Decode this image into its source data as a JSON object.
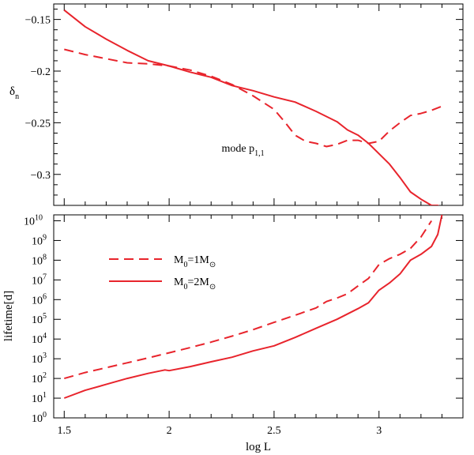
{
  "colors": {
    "series": "#e8242c",
    "axis": "#000000"
  },
  "chart_data": [
    {
      "type": "line",
      "panel": "top",
      "xlabel": "",
      "ylabel": "δ",
      "ylabel_sub": "n",
      "xlim": [
        1.45,
        3.4
      ],
      "ylim": [
        -0.33,
        -0.135
      ],
      "x_ticks": [
        1.5,
        2,
        2.5,
        3
      ],
      "y_ticks": [
        -0.15,
        -0.2,
        -0.25,
        -0.3
      ],
      "y_tick_labels": [
        "−0.15",
        "−0.2",
        "−0.25",
        "−0.3"
      ],
      "annotation": {
        "text": "mode p",
        "sub": "1,1",
        "x": 2.25,
        "y": -0.278
      },
      "series": [
        {
          "style": "dashed",
          "x": [
            1.5,
            1.6,
            1.7,
            1.8,
            1.9,
            2.0,
            2.1,
            2.2,
            2.3,
            2.4,
            2.5,
            2.55,
            2.6,
            2.65,
            2.7,
            2.75,
            2.8,
            2.85,
            2.9,
            2.95,
            3.0,
            3.05,
            3.1,
            3.15,
            3.2,
            3.25,
            3.3
          ],
          "y": [
            -0.179,
            -0.184,
            -0.188,
            -0.192,
            -0.193,
            -0.195,
            -0.199,
            -0.205,
            -0.213,
            -0.224,
            -0.237,
            -0.249,
            -0.262,
            -0.268,
            -0.27,
            -0.273,
            -0.271,
            -0.267,
            -0.267,
            -0.27,
            -0.268,
            -0.258,
            -0.25,
            -0.243,
            -0.241,
            -0.238,
            -0.234
          ]
        },
        {
          "style": "solid",
          "x": [
            1.5,
            1.6,
            1.7,
            1.8,
            1.9,
            2.0,
            2.1,
            2.2,
            2.3,
            2.4,
            2.5,
            2.6,
            2.7,
            2.8,
            2.85,
            2.9,
            2.95,
            3.0,
            3.05,
            3.1,
            3.15,
            3.2,
            3.25,
            3.28,
            3.3
          ],
          "y": [
            -0.141,
            -0.157,
            -0.169,
            -0.18,
            -0.19,
            -0.195,
            -0.201,
            -0.206,
            -0.214,
            -0.219,
            -0.225,
            -0.23,
            -0.239,
            -0.249,
            -0.257,
            -0.262,
            -0.27,
            -0.28,
            -0.29,
            -0.303,
            -0.317,
            -0.324,
            -0.33,
            -0.33,
            -0.332
          ]
        }
      ]
    },
    {
      "type": "line",
      "panel": "bottom",
      "xlabel": "log L",
      "ylabel": "lifetime[d]",
      "xlim": [
        1.45,
        3.4
      ],
      "ylog": true,
      "ylim_exp": [
        0,
        10.3
      ],
      "x_ticks": [
        1.5,
        2,
        2.5,
        3
      ],
      "x_tick_labels": [
        "1.5",
        "2",
        "2.5",
        "3"
      ],
      "y_tick_exps": [
        0,
        1,
        2,
        3,
        4,
        5,
        6,
        7,
        8,
        9,
        10
      ],
      "legend": {
        "position": "upper-left",
        "base": "M",
        "sub": "0",
        "sun": "M",
        "sun_sub": "⊙"
      },
      "series": [
        {
          "style": "dashed",
          "legend_value": "=1",
          "x": [
            1.5,
            1.6,
            1.7,
            1.8,
            1.9,
            2.0,
            2.1,
            2.2,
            2.3,
            2.4,
            2.5,
            2.6,
            2.7,
            2.75,
            2.8,
            2.85,
            2.9,
            2.95,
            3.0,
            3.05,
            3.1,
            3.15,
            3.2,
            3.25
          ],
          "y": [
            100,
            200,
            350,
            620,
            1100,
            2000,
            3700,
            7000,
            14000,
            30000,
            70000,
            160000,
            380000,
            800000,
            1200000,
            2000000,
            5000000,
            12000000,
            60000000,
            120000000,
            200000000,
            400000000,
            1500000000,
            10000000000
          ]
        },
        {
          "style": "solid",
          "legend_value": "=2",
          "x": [
            1.5,
            1.6,
            1.7,
            1.8,
            1.9,
            1.98,
            2.0,
            2.1,
            2.2,
            2.3,
            2.4,
            2.5,
            2.6,
            2.7,
            2.8,
            2.9,
            2.95,
            3.0,
            3.05,
            3.1,
            3.15,
            3.2,
            3.25,
            3.28,
            3.3
          ],
          "y": [
            10,
            25,
            50,
            100,
            180,
            270,
            250,
            400,
            700,
            1200,
            2500,
            4500,
            12000,
            35000,
            100000,
            350000,
            700000,
            3000000,
            7000000,
            20000000,
            100000000,
            200000000,
            500000000,
            2000000000,
            20000000000
          ]
        }
      ]
    }
  ]
}
